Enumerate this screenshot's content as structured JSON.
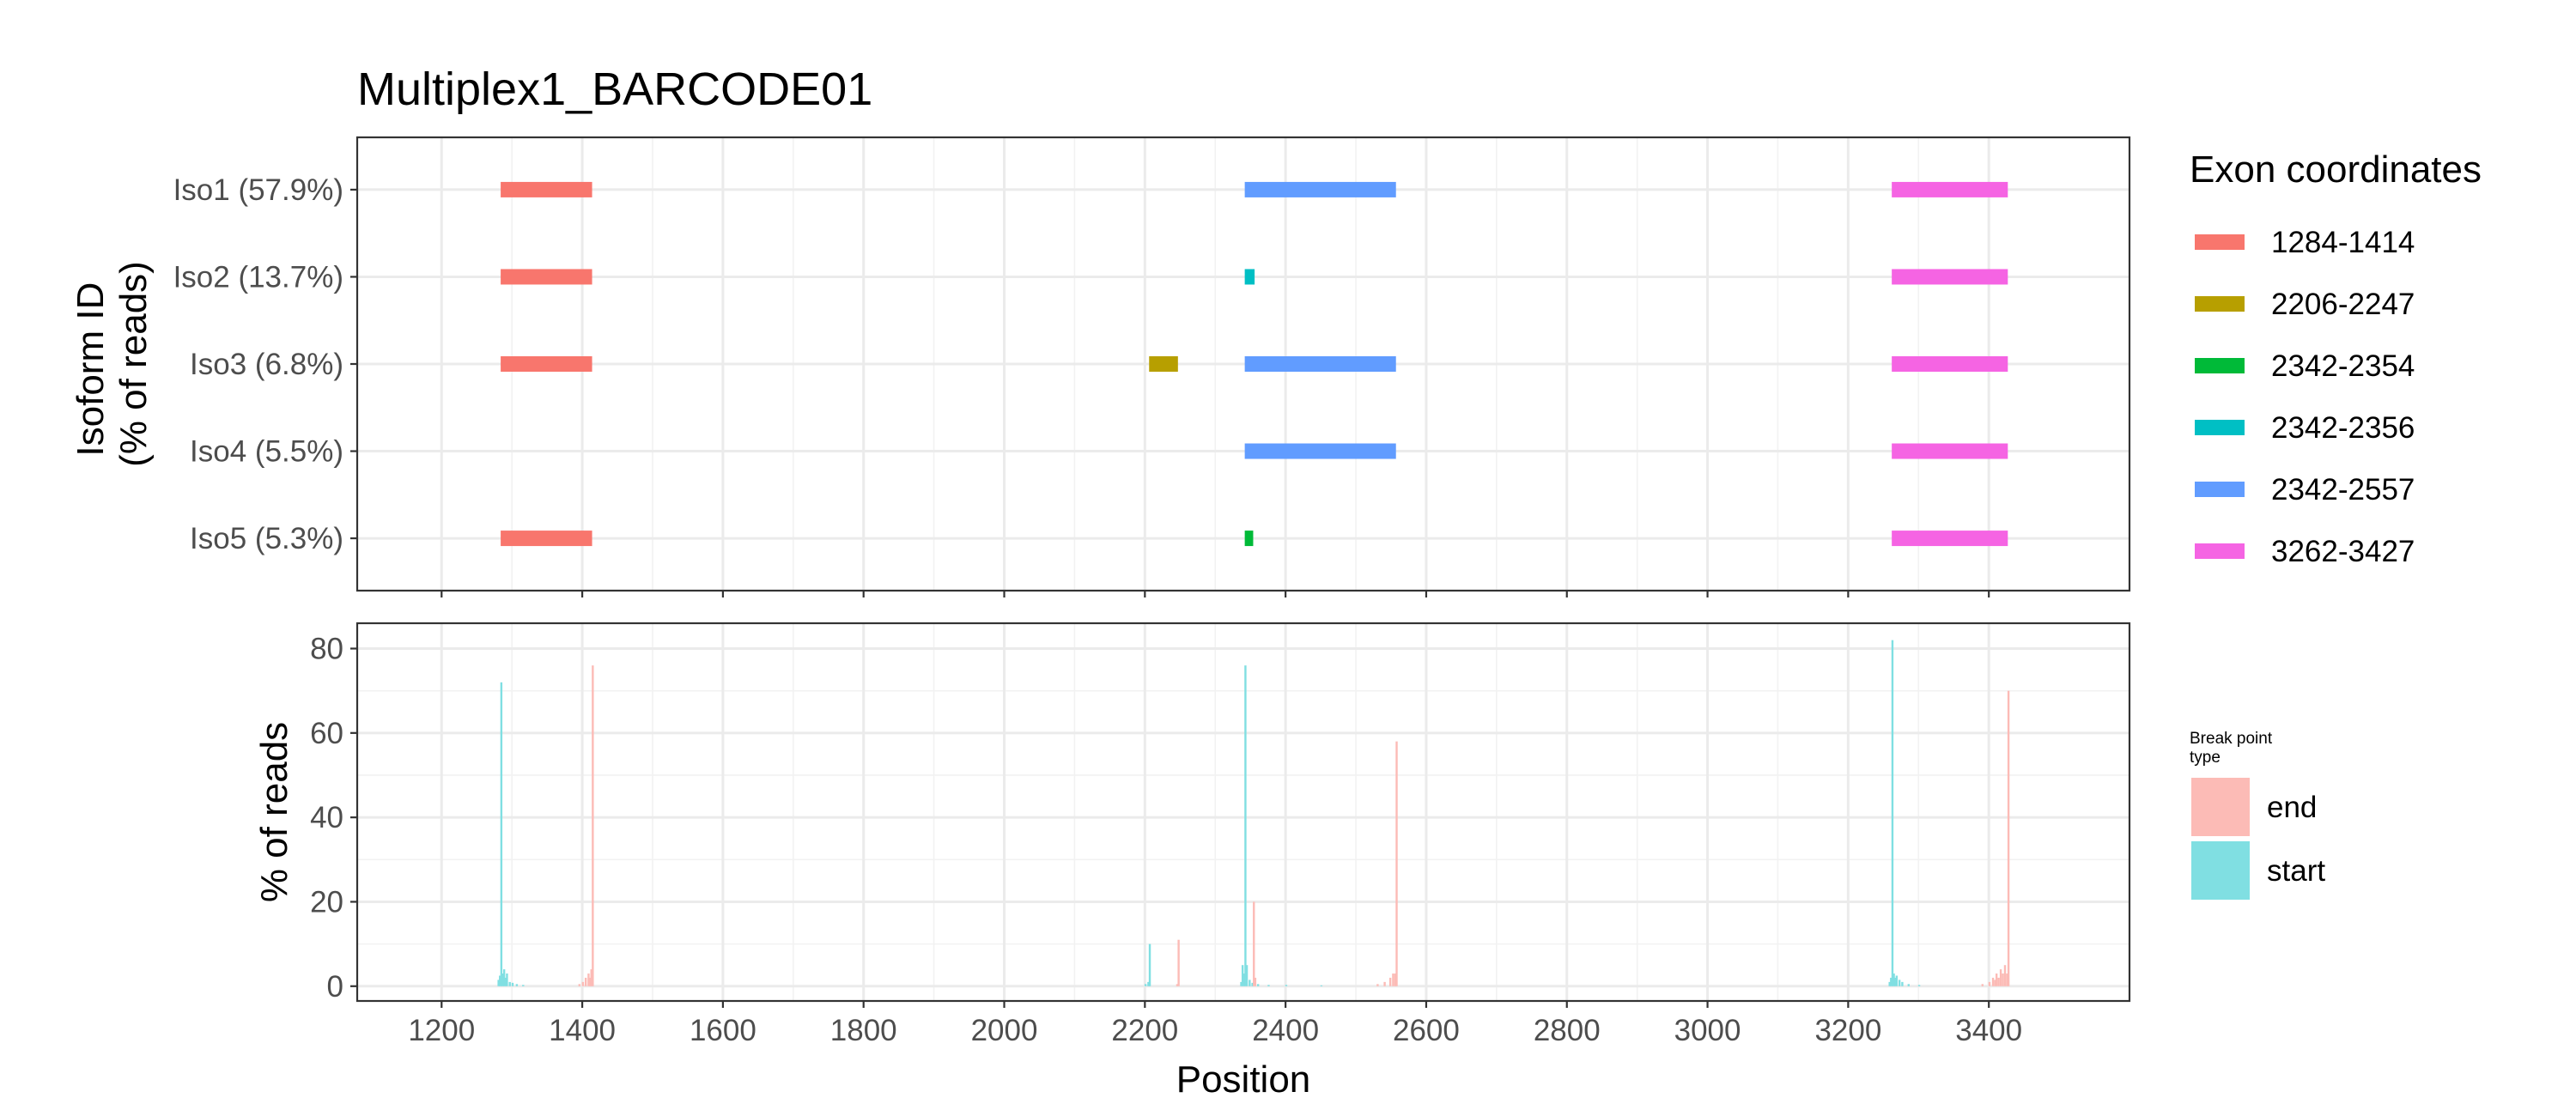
{
  "chart_data": [
    {
      "type": "range-bar",
      "title": "Multiplex1_BARCODE01",
      "xlabel": "",
      "ylabel_lines": [
        "Isoform ID",
        "(% of reads)"
      ],
      "xlim": [
        1080,
        3600
      ],
      "grid": true,
      "categories": [
        "Iso1 (57.9%)",
        "Iso2 (13.7%)",
        "Iso3 (6.8%)",
        "Iso4 (5.5%)",
        "Iso5 (5.3%)"
      ],
      "legend": {
        "title": "Exon coordinates",
        "placement": "right",
        "entries": [
          {
            "label": "1284-1414",
            "start": 1284,
            "end": 1414,
            "color": "#F8766D"
          },
          {
            "label": "2206-2247",
            "start": 2206,
            "end": 2247,
            "color": "#B79F00"
          },
          {
            "label": "2342-2354",
            "start": 2342,
            "end": 2354,
            "color": "#00BA38"
          },
          {
            "label": "2342-2356",
            "start": 2342,
            "end": 2356,
            "color": "#00BFC4"
          },
          {
            "label": "2342-2557",
            "start": 2342,
            "end": 2557,
            "color": "#619CFF"
          },
          {
            "label": "3262-3427",
            "start": 3262,
            "end": 3427,
            "color": "#F564E3"
          }
        ]
      },
      "isoforms": [
        {
          "label": "Iso1 (57.9%)",
          "exons": [
            "1284-1414",
            "2342-2557",
            "3262-3427"
          ]
        },
        {
          "label": "Iso2 (13.7%)",
          "exons": [
            "1284-1414",
            "2342-2356",
            "3262-3427"
          ]
        },
        {
          "label": "Iso3 (6.8%)",
          "exons": [
            "1284-1414",
            "2206-2247",
            "2342-2557",
            "3262-3427"
          ]
        },
        {
          "label": "Iso4 (5.5%)",
          "exons": [
            "2342-2557",
            "3262-3427"
          ]
        },
        {
          "label": "Iso5 (5.3%)",
          "exons": [
            "1284-1414",
            "2342-2354",
            "3262-3427"
          ]
        }
      ]
    },
    {
      "type": "bar",
      "xlabel": "Position",
      "ylabel": "% of reads",
      "xlim": [
        1080,
        3600
      ],
      "ylim": [
        -3.5,
        86
      ],
      "x_ticks": [
        1200,
        1400,
        1600,
        1800,
        2000,
        2200,
        2400,
        2600,
        2800,
        3000,
        3200,
        3400
      ],
      "y_ticks": [
        0,
        20,
        40,
        60,
        80
      ],
      "grid": true,
      "legend": {
        "title_lines": [
          "Break point",
          "type"
        ],
        "placement": "right",
        "entries": [
          {
            "label": "end",
            "color": "#F8766D"
          },
          {
            "label": "start",
            "color": "#00BFC4"
          }
        ]
      },
      "series": [
        {
          "name": "start",
          "points": [
            {
              "x": 1280,
              "y": 1.5
            },
            {
              "x": 1282,
              "y": 2.5
            },
            {
              "x": 1284,
              "y": 72
            },
            {
              "x": 1286,
              "y": 3
            },
            {
              "x": 1288,
              "y": 4
            },
            {
              "x": 1290,
              "y": 2
            },
            {
              "x": 1292,
              "y": 3
            },
            {
              "x": 1296,
              "y": 1
            },
            {
              "x": 1300,
              "y": 0.8
            },
            {
              "x": 1306,
              "y": 0.5
            },
            {
              "x": 1315,
              "y": 0.3
            },
            {
              "x": 2200,
              "y": 0.5
            },
            {
              "x": 2204,
              "y": 1
            },
            {
              "x": 2206,
              "y": 10
            },
            {
              "x": 2336,
              "y": 1
            },
            {
              "x": 2338,
              "y": 5
            },
            {
              "x": 2340,
              "y": 3
            },
            {
              "x": 2342,
              "y": 76
            },
            {
              "x": 2344,
              "y": 5
            },
            {
              "x": 2348,
              "y": 1.5
            },
            {
              "x": 2352,
              "y": 0.8
            },
            {
              "x": 2360,
              "y": 0.5
            },
            {
              "x": 2375,
              "y": 0.3
            },
            {
              "x": 2400,
              "y": 0.3
            },
            {
              "x": 2450,
              "y": 0.2
            },
            {
              "x": 3258,
              "y": 1
            },
            {
              "x": 3260,
              "y": 2
            },
            {
              "x": 3262,
              "y": 82
            },
            {
              "x": 3264,
              "y": 3
            },
            {
              "x": 3266,
              "y": 2
            },
            {
              "x": 3268,
              "y": 2.5
            },
            {
              "x": 3272,
              "y": 1.5
            },
            {
              "x": 3276,
              "y": 1
            },
            {
              "x": 3285,
              "y": 0.5
            },
            {
              "x": 3300,
              "y": 0.3
            }
          ]
        },
        {
          "name": "end",
          "points": [
            {
              "x": 1395,
              "y": 0.5
            },
            {
              "x": 1400,
              "y": 1
            },
            {
              "x": 1404,
              "y": 2
            },
            {
              "x": 1408,
              "y": 3
            },
            {
              "x": 1410,
              "y": 2
            },
            {
              "x": 1412,
              "y": 4
            },
            {
              "x": 1414,
              "y": 76
            },
            {
              "x": 2245,
              "y": 0.5
            },
            {
              "x": 2247,
              "y": 11
            },
            {
              "x": 2354,
              "y": 20
            },
            {
              "x": 2356,
              "y": 2
            },
            {
              "x": 2530,
              "y": 0.5
            },
            {
              "x": 2540,
              "y": 1
            },
            {
              "x": 2548,
              "y": 2
            },
            {
              "x": 2552,
              "y": 3
            },
            {
              "x": 2555,
              "y": 3
            },
            {
              "x": 2557,
              "y": 58
            },
            {
              "x": 3390,
              "y": 0.5
            },
            {
              "x": 3400,
              "y": 1
            },
            {
              "x": 3405,
              "y": 2
            },
            {
              "x": 3408,
              "y": 1.5
            },
            {
              "x": 3410,
              "y": 3
            },
            {
              "x": 3413,
              "y": 2
            },
            {
              "x": 3416,
              "y": 4
            },
            {
              "x": 3419,
              "y": 3
            },
            {
              "x": 3422,
              "y": 5
            },
            {
              "x": 3425,
              "y": 3
            },
            {
              "x": 3427,
              "y": 70
            }
          ]
        }
      ]
    }
  ]
}
